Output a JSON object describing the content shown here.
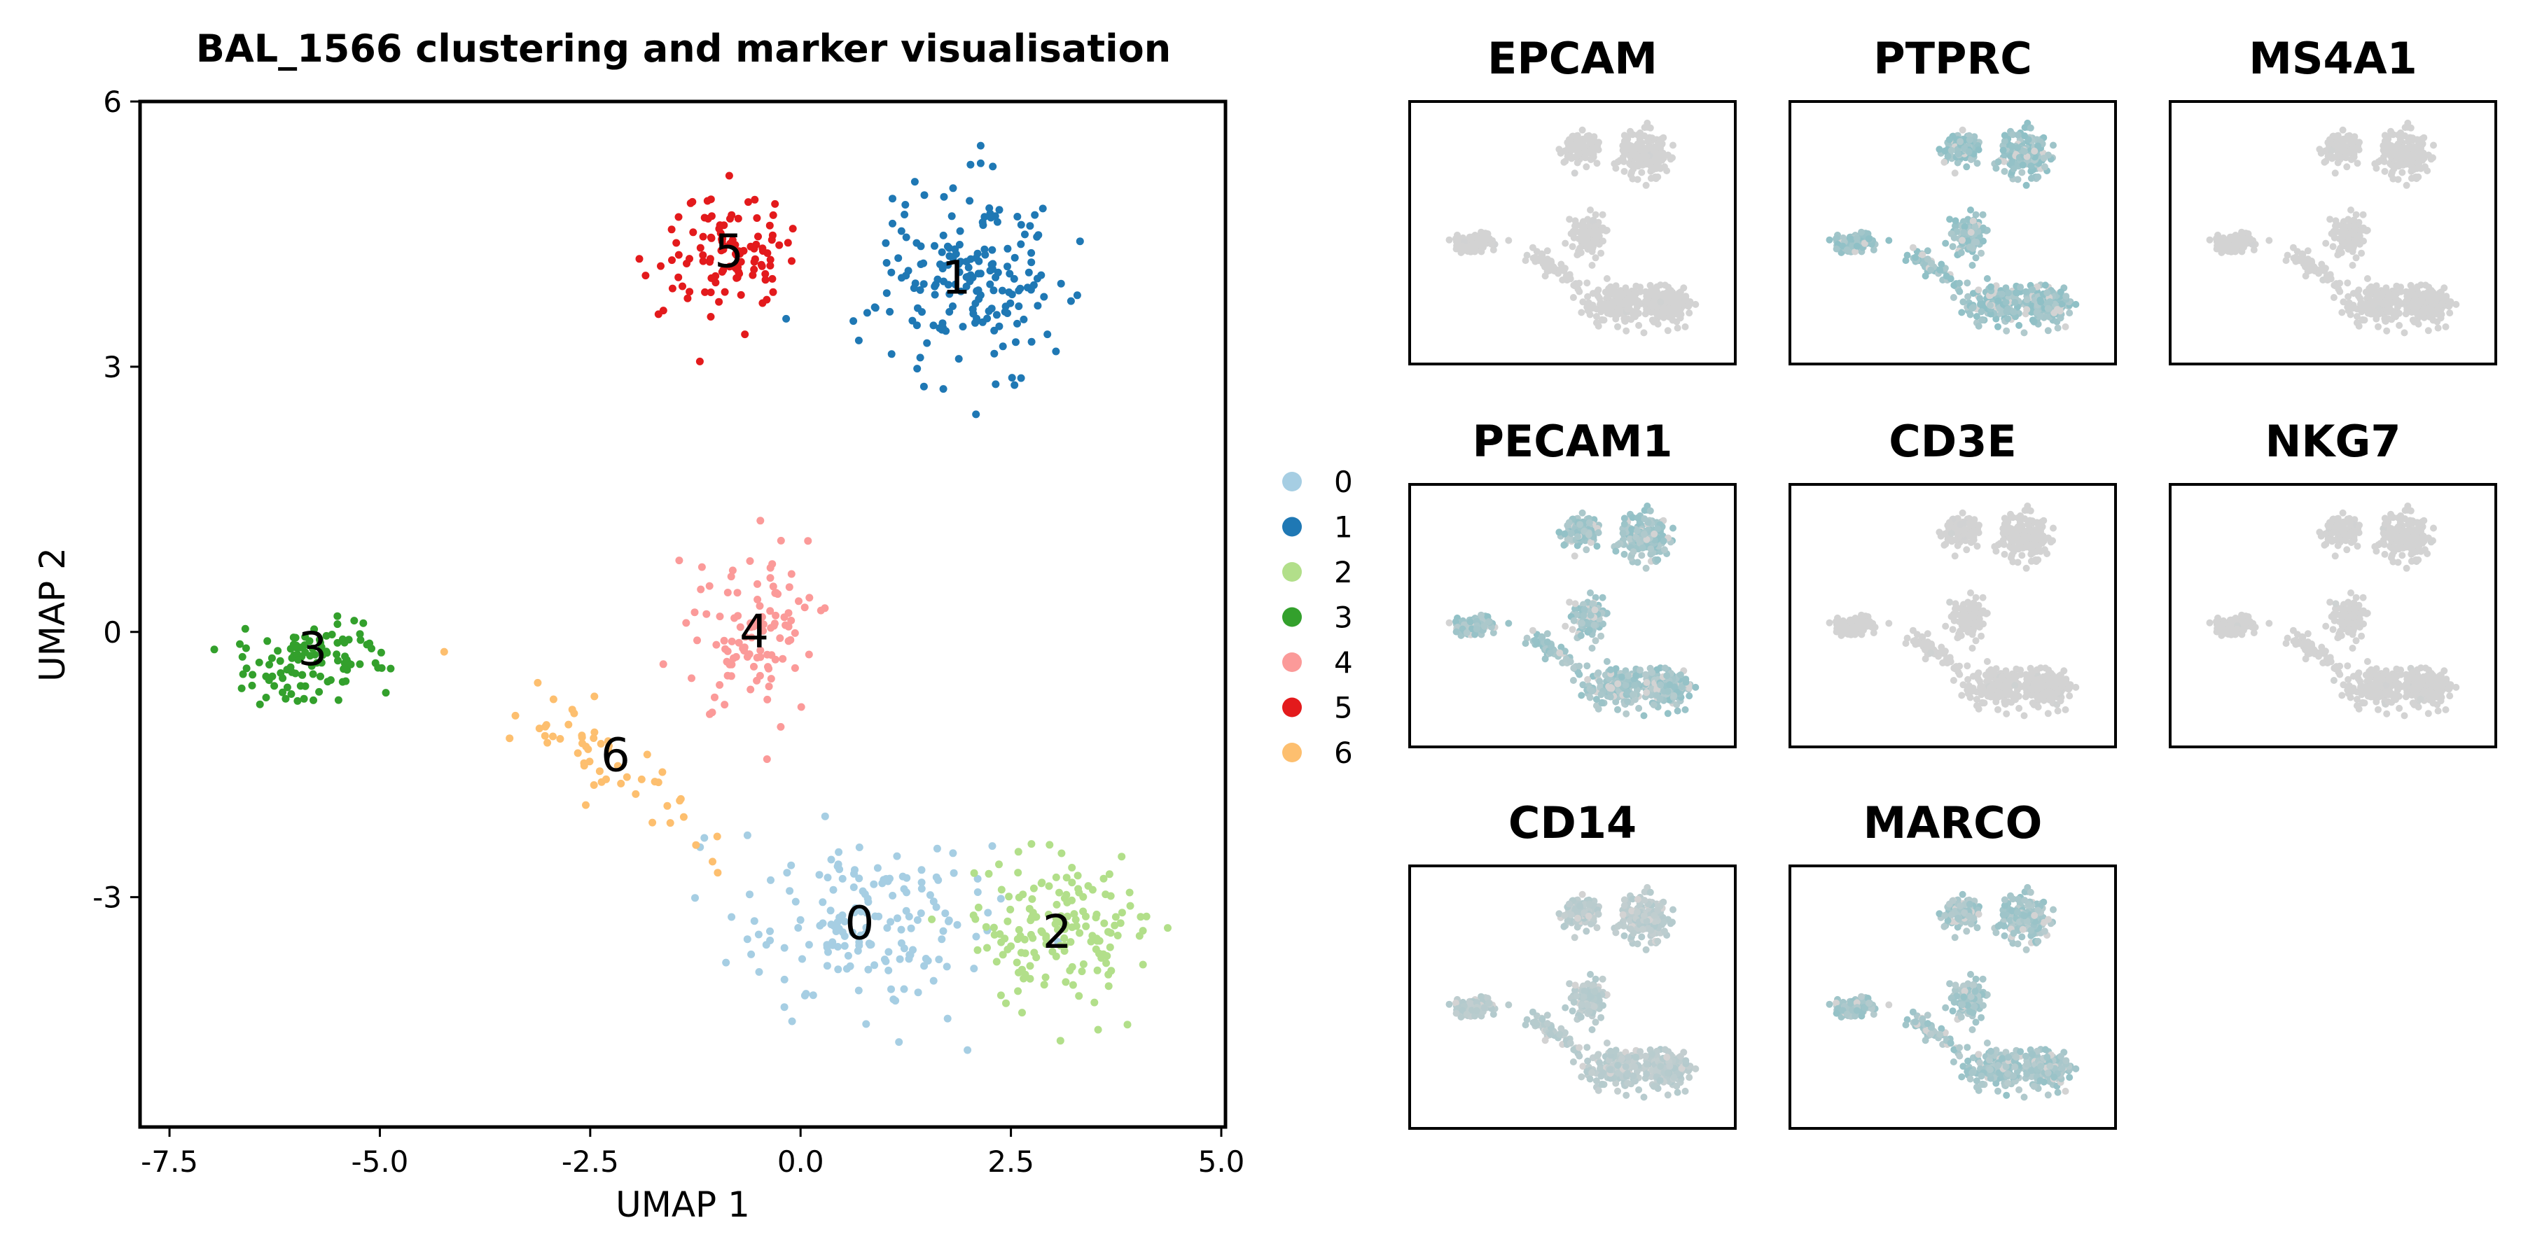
{
  "chart_data": [
    {
      "type": "scatter",
      "title": "BAL_1566 clustering and marker visualisation",
      "xlabel": "UMAP 1",
      "ylabel": "UMAP 2",
      "xlim": [
        -7.5,
        5.0
      ],
      "ylim": [
        -5.6,
        6.0
      ],
      "xticks": [
        -7.5,
        -5.0,
        -2.5,
        0.0,
        2.5,
        5.0
      ],
      "xtick_labels": [
        "-7.5",
        "-5.0",
        "-2.5",
        "0.0",
        "2.5",
        "5.0"
      ],
      "yticks": [
        -3,
        0,
        3,
        6
      ],
      "ytick_labels": [
        "-3",
        "0",
        "3",
        "6"
      ],
      "grid": false,
      "legend_position": "right",
      "series": [
        {
          "name": "0",
          "color": "#a6cee3",
          "center": [
            0.7,
            -3.3
          ],
          "spread": [
            1.2,
            0.9
          ],
          "n": 170
        },
        {
          "name": "1",
          "color": "#1f78b4",
          "center": [
            2.0,
            4.0
          ],
          "spread": [
            0.9,
            0.9
          ],
          "n": 190
        },
        {
          "name": "2",
          "color": "#b2df8a",
          "center": [
            3.1,
            -3.4
          ],
          "spread": [
            0.9,
            0.7
          ],
          "n": 160
        },
        {
          "name": "3",
          "color": "#33a02c",
          "center": [
            -5.9,
            -0.3
          ],
          "spread": [
            0.8,
            0.35
          ],
          "n": 110
        },
        {
          "name": "4",
          "color": "#fb9a99",
          "center": [
            -0.5,
            0.0
          ],
          "spread": [
            0.6,
            0.8
          ],
          "n": 110
        },
        {
          "name": "5",
          "color": "#e31a1c",
          "center": [
            -0.9,
            4.3
          ],
          "spread": [
            0.6,
            0.55
          ],
          "n": 110
        },
        {
          "name": "6",
          "color": "#fdbf6f",
          "center": [
            -2.3,
            -1.5
          ],
          "spread": [
            1.1,
            0.6
          ],
          "n": 55
        }
      ],
      "cluster_labels": [
        {
          "text": "0",
          "x": 0.7,
          "y": -3.3
        },
        {
          "text": "1",
          "x": 1.85,
          "y": 4.0
        },
        {
          "text": "2",
          "x": 3.05,
          "y": -3.4
        },
        {
          "text": "3",
          "x": -5.8,
          "y": -0.2
        },
        {
          "text": "4",
          "x": -0.55,
          "y": 0.0
        },
        {
          "text": "5",
          "x": -0.85,
          "y": 4.3
        },
        {
          "text": "6",
          "x": -2.2,
          "y": -1.4
        }
      ]
    },
    {
      "type": "scatter",
      "subtype": "feature-plot-grid",
      "low_color": "#d3d3d3",
      "high_color": "#8fc0c6",
      "panels": [
        {
          "title": "EPCAM",
          "expression_level": 0.03
        },
        {
          "title": "PTPRC",
          "expression_level": 0.8
        },
        {
          "title": "MS4A1",
          "expression_level": 0.02
        },
        {
          "title": "PECAM1",
          "expression_level": 0.7
        },
        {
          "title": "CD3E",
          "expression_level": 0.05
        },
        {
          "title": "NKG7",
          "expression_level": 0.05
        },
        {
          "title": "CD14",
          "expression_level": 0.35
        },
        {
          "title": "MARCO",
          "expression_level": 0.65
        }
      ]
    }
  ]
}
